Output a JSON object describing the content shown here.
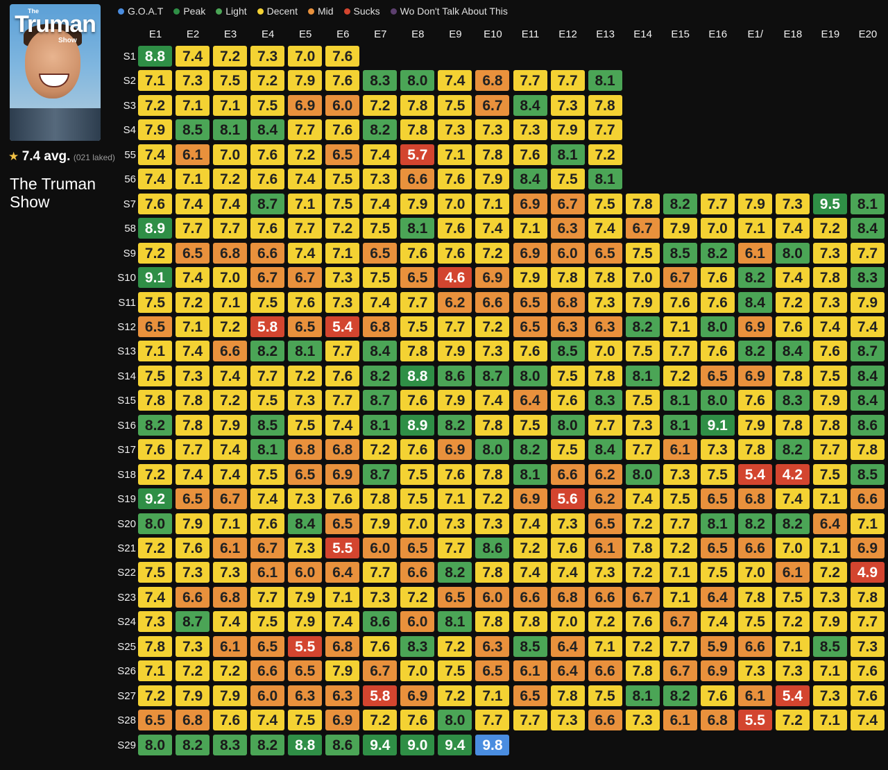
{
  "poster": {
    "the": "The",
    "title": "Truman",
    "subtitle": "Show"
  },
  "summary": {
    "star": "★",
    "avg": "7.4 avg.",
    "rated": "(021 laked)",
    "show_title": "The Truman Show"
  },
  "legend": [
    {
      "label": "G.O.A.T",
      "color": "#4a8de0",
      "key": "goat"
    },
    {
      "label": "Peak",
      "color": "#2f8f46",
      "key": "peak"
    },
    {
      "label": "Light",
      "color": "#4ba556",
      "key": "light"
    },
    {
      "label": "Decent",
      "color": "#f4d233",
      "key": "decent"
    },
    {
      "label": "Mid",
      "color": "#e9913c",
      "key": "mid"
    },
    {
      "label": "Sucks",
      "color": "#d3452f",
      "key": "sucks"
    },
    {
      "label": "Wo Don't Talk About This",
      "color": "#5c3f6e",
      "key": "wd"
    }
  ],
  "chart_data": {
    "type": "heatmap",
    "columns": [
      "E1",
      "E2",
      "E3",
      "E4",
      "E5",
      "E6",
      "E7",
      "E8",
      "E9",
      "E10",
      "E11",
      "E12",
      "E13",
      "E14",
      "E15",
      "E16",
      "E1/",
      "E18",
      "E19",
      "E20"
    ],
    "rows": [
      "S1",
      "S2",
      "S3",
      "S4",
      "55",
      "56",
      "S7",
      "58",
      "S9",
      "S10",
      "S11",
      "S12",
      "S13",
      "S14",
      "S15",
      "S16",
      "S17",
      "S18",
      "S19",
      "S20",
      "S21",
      "S22",
      "S23",
      "S24",
      "S25",
      "S26",
      "S27",
      "S28",
      "S29"
    ],
    "values": [
      [
        8.8,
        7.4,
        7.2,
        7.3,
        7.0,
        7.6
      ],
      [
        7.1,
        7.3,
        7.5,
        7.2,
        7.9,
        7.6,
        8.3,
        8.0,
        7.4,
        6.8,
        7.7,
        7.7,
        8.1
      ],
      [
        7.2,
        7.1,
        7.1,
        7.5,
        6.9,
        6.0,
        7.2,
        7.8,
        7.5,
        6.7,
        8.4,
        7.3,
        7.8
      ],
      [
        7.9,
        8.5,
        8.1,
        8.4,
        7.7,
        7.6,
        8.2,
        7.8,
        7.3,
        7.3,
        7.3,
        7.9,
        7.7
      ],
      [
        7.4,
        6.1,
        7.0,
        7.6,
        7.2,
        6.5,
        7.4,
        5.7,
        7.1,
        7.8,
        7.6,
        8.1,
        7.2
      ],
      [
        7.4,
        7.1,
        7.2,
        7.6,
        7.4,
        7.5,
        7.3,
        6.6,
        7.6,
        7.9,
        8.4,
        7.5,
        8.1
      ],
      [
        7.6,
        7.4,
        7.4,
        8.7,
        7.1,
        7.5,
        7.4,
        7.9,
        7.0,
        7.1,
        6.9,
        6.7,
        7.5,
        7.8,
        8.2,
        7.7,
        7.9,
        7.3,
        9.5,
        8.1
      ],
      [
        8.9,
        7.7,
        7.7,
        7.6,
        7.7,
        7.2,
        7.5,
        8.1,
        7.6,
        7.4,
        7.1,
        6.3,
        7.4,
        6.7,
        7.9,
        7.0,
        7.1,
        7.4,
        7.2,
        8.4
      ],
      [
        7.2,
        6.5,
        6.8,
        6.6,
        7.4,
        7.1,
        6.5,
        7.6,
        7.6,
        7.2,
        6.9,
        6.0,
        6.5,
        7.5,
        8.5,
        8.2,
        6.1,
        8.0,
        7.3,
        7.7
      ],
      [
        9.1,
        7.4,
        7.0,
        6.7,
        6.7,
        7.3,
        7.5,
        6.5,
        4.6,
        6.9,
        7.9,
        7.8,
        7.8,
        7.0,
        6.7,
        7.6,
        8.2,
        7.4,
        7.8,
        8.3
      ],
      [
        7.5,
        7.2,
        7.1,
        7.5,
        7.6,
        7.3,
        7.4,
        7.7,
        6.2,
        6.6,
        6.5,
        6.8,
        7.3,
        7.9,
        7.6,
        7.6,
        8.4,
        7.2,
        7.3,
        7.9
      ],
      [
        6.5,
        7.1,
        7.2,
        5.8,
        6.5,
        5.4,
        6.8,
        7.5,
        7.7,
        7.2,
        6.5,
        6.3,
        6.3,
        8.2,
        7.1,
        8.0,
        6.9,
        7.6,
        7.4,
        7.4
      ],
      [
        7.1,
        7.4,
        6.6,
        8.2,
        8.1,
        7.7,
        8.4,
        7.8,
        7.9,
        7.3,
        7.6,
        8.5,
        7.0,
        7.5,
        7.7,
        7.6,
        8.2,
        8.4,
        7.6,
        8.7
      ],
      [
        7.5,
        7.3,
        7.4,
        7.7,
        7.2,
        7.6,
        8.2,
        8.8,
        8.6,
        8.7,
        8.0,
        7.5,
        7.8,
        8.1,
        7.2,
        6.5,
        6.9,
        7.8,
        7.5,
        8.4
      ],
      [
        7.8,
        7.8,
        7.2,
        7.5,
        7.3,
        7.7,
        8.7,
        7.6,
        7.9,
        7.4,
        6.4,
        7.6,
        8.3,
        7.5,
        8.1,
        8.0,
        7.6,
        8.3,
        7.9,
        8.4
      ],
      [
        8.2,
        7.8,
        7.9,
        8.5,
        7.5,
        7.4,
        8.1,
        8.9,
        8.2,
        7.8,
        7.5,
        8.0,
        7.7,
        7.3,
        8.1,
        9.1,
        7.9,
        7.8,
        7.8,
        8.6
      ],
      [
        7.6,
        7.7,
        7.4,
        8.1,
        6.8,
        6.8,
        7.2,
        7.6,
        6.9,
        8.0,
        8.2,
        7.5,
        8.4,
        7.7,
        6.1,
        7.3,
        7.8,
        8.2,
        7.7,
        7.8
      ],
      [
        7.2,
        7.4,
        7.4,
        7.5,
        6.5,
        6.9,
        8.7,
        7.5,
        7.6,
        7.8,
        8.1,
        6.6,
        6.2,
        8.0,
        7.3,
        7.5,
        5.4,
        4.2,
        7.5,
        8.5
      ],
      [
        9.2,
        6.5,
        6.7,
        7.4,
        7.3,
        7.6,
        7.8,
        7.5,
        7.1,
        7.2,
        6.9,
        5.6,
        6.2,
        7.4,
        7.5,
        6.5,
        6.8,
        7.4,
        7.1,
        6.6
      ],
      [
        8.0,
        7.9,
        7.1,
        7.6,
        8.4,
        6.5,
        7.9,
        7.0,
        7.3,
        7.3,
        7.4,
        7.3,
        6.5,
        7.2,
        7.7,
        8.1,
        8.2,
        8.2,
        6.4,
        7.1
      ],
      [
        7.2,
        7.6,
        6.1,
        6.7,
        7.3,
        5.5,
        6.0,
        6.5,
        7.7,
        8.6,
        7.2,
        7.6,
        6.1,
        7.8,
        7.2,
        6.5,
        6.6,
        7.0,
        7.1,
        6.9
      ],
      [
        7.5,
        7.3,
        7.3,
        6.1,
        6.0,
        6.4,
        7.7,
        6.6,
        8.2,
        7.8,
        7.4,
        7.4,
        7.3,
        7.2,
        7.1,
        7.5,
        7.0,
        6.1,
        7.2,
        4.9
      ],
      [
        7.4,
        6.6,
        6.8,
        7.7,
        7.9,
        7.1,
        7.3,
        7.2,
        6.5,
        6.0,
        6.6,
        6.8,
        6.6,
        6.7,
        7.1,
        6.4,
        7.8,
        7.5,
        7.3,
        7.8
      ],
      [
        7.3,
        8.7,
        7.4,
        7.5,
        7.9,
        7.4,
        8.6,
        6.0,
        8.1,
        7.8,
        7.8,
        7.0,
        7.2,
        7.6,
        6.7,
        7.4,
        7.5,
        7.2,
        7.9,
        7.7
      ],
      [
        7.8,
        7.3,
        6.1,
        6.5,
        5.5,
        6.8,
        7.6,
        8.3,
        7.2,
        6.3,
        8.5,
        6.4,
        7.1,
        7.2,
        7.7,
        5.9,
        6.6,
        7.1,
        8.5,
        7.3
      ],
      [
        7.1,
        7.2,
        7.2,
        6.6,
        6.5,
        7.9,
        6.7,
        7.0,
        7.5,
        6.5,
        6.1,
        6.4,
        6.6,
        7.8,
        6.7,
        6.9,
        7.3,
        7.3,
        7.1,
        7.6
      ],
      [
        7.2,
        7.9,
        7.9,
        6.0,
        6.3,
        6.3,
        5.8,
        6.9,
        7.2,
        7.1,
        6.5,
        7.8,
        7.5,
        8.1,
        8.2,
        7.6,
        6.1,
        5.4,
        7.3,
        7.6
      ],
      [
        6.5,
        6.8,
        7.6,
        7.4,
        7.5,
        6.9,
        7.2,
        7.6,
        8.0,
        7.7,
        7.7,
        7.3,
        6.6,
        7.3,
        6.1,
        6.8,
        5.5,
        7.2,
        7.1,
        7.4
      ],
      [
        8.0,
        8.2,
        8.3,
        8.2,
        8.8,
        8.6,
        9.4,
        9.0,
        9.4,
        9.8
      ]
    ],
    "thresholds": [
      {
        "min": 9.6,
        "category": "goat"
      },
      {
        "min": 8.8,
        "category": "peak"
      },
      {
        "min": 8.0,
        "category": "light"
      },
      {
        "min": 7.0,
        "category": "decent"
      },
      {
        "min": 5.9,
        "category": "mid"
      },
      {
        "min": 0,
        "category": "sucks"
      }
    ]
  }
}
